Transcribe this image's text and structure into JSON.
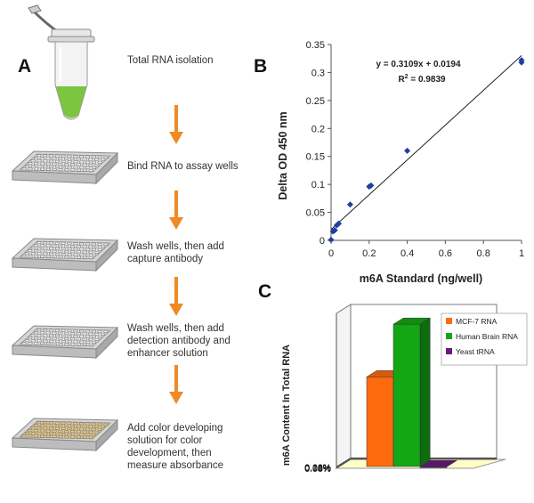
{
  "panels": {
    "a": "A",
    "b": "B",
    "c": "C"
  },
  "protocol_steps": [
    {
      "text": "Total RNA isolation",
      "icon": "microcentrifuge-tube"
    },
    {
      "text": "Bind RNA to assay wells",
      "icon": "microplate"
    },
    {
      "text": "Wash wells, then add\ncapture antibody",
      "icon": "microplate"
    },
    {
      "text": "Wash wells, then add\ndetection antibody and\nenhancer solution",
      "icon": "microplate"
    },
    {
      "text": "Add color developing\nsolution for color\ndevelopment, then\nmeasure absorbance",
      "icon": "microplate-colored"
    }
  ],
  "colors": {
    "arrow": "#f08a24",
    "tube_liquid": "#7cc53f",
    "plate": "#e9e9e9",
    "plate_colored": "#e4c98c"
  },
  "chart_data": [
    {
      "type": "scatter",
      "title": "",
      "xlabel": "m6A Standard (ng/well)",
      "ylabel": "Delta OD 450 nm",
      "xlim": [
        0,
        1
      ],
      "ylim": [
        0,
        0.35
      ],
      "x_ticks": [
        "0",
        "0.2",
        "0.4",
        "0.6",
        "0.8",
        "1"
      ],
      "y_ticks": [
        "0",
        "0.05",
        "0.1",
        "0.15",
        "0.2",
        "0.25",
        "0.3",
        "0.35"
      ],
      "points": [
        {
          "x": 0,
          "y": 0.001
        },
        {
          "x": 0.01,
          "y": 0.016
        },
        {
          "x": 0.02,
          "y": 0.018
        },
        {
          "x": 0.03,
          "y": 0.027
        },
        {
          "x": 0.04,
          "y": 0.03
        },
        {
          "x": 0.1,
          "y": 0.064
        },
        {
          "x": 0.2,
          "y": 0.096
        },
        {
          "x": 0.21,
          "y": 0.098
        },
        {
          "x": 0.4,
          "y": 0.16
        },
        {
          "x": 1,
          "y": 0.318
        },
        {
          "x": 1,
          "y": 0.322
        }
      ],
      "trendline": {
        "slope": 0.3109,
        "intercept": 0.0194
      },
      "equation": "y = 0.3109x + 0.0194",
      "r_squared_label": "R",
      "r_squared_exp": "2",
      "r_squared_value": " = 0.9839",
      "point_color": "#1f3f9f",
      "grid": false
    },
    {
      "type": "bar",
      "title": "",
      "xlabel": "",
      "ylabel": "m6A Content In Total RNA",
      "ylim": [
        0,
        0.2
      ],
      "y_ticks": [
        "0.00%",
        "0.04%",
        "0.08%",
        "0.12%",
        "0.16%",
        "0.20%"
      ],
      "series": [
        {
          "name": "MCF-7 RNA",
          "value": 0.118,
          "color": "#ff6a0f"
        },
        {
          "name": "Human Brain RNA",
          "value": 0.186,
          "color": "#14a614"
        },
        {
          "name": "Yeast tRNA",
          "value": 0.002,
          "color": "#6a1a7a"
        }
      ],
      "legend_position": "top-right",
      "three_d": true,
      "grid": true
    }
  ]
}
